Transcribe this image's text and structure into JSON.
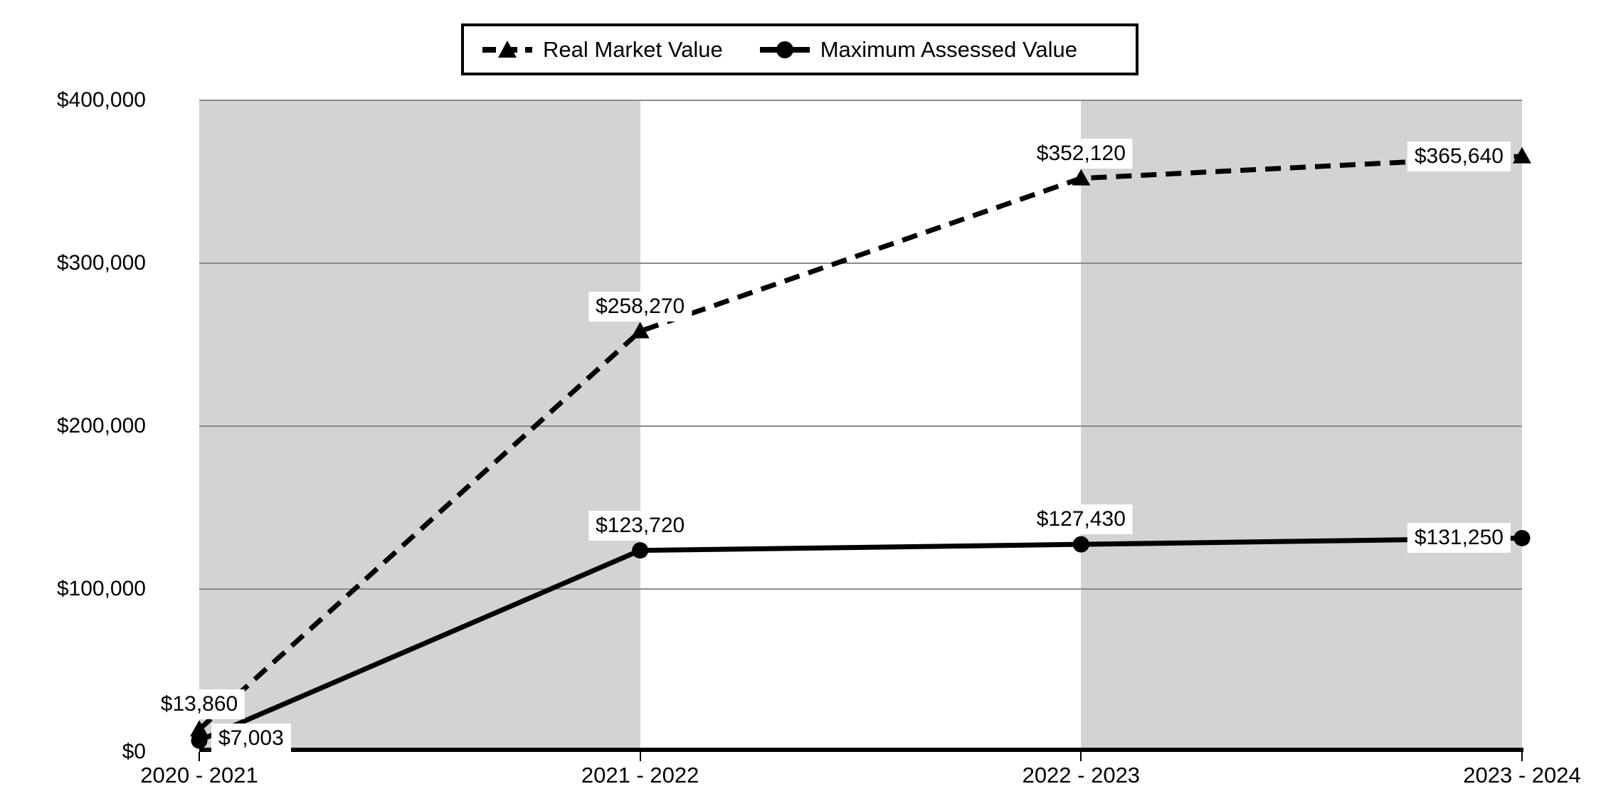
{
  "legend": {
    "items": [
      {
        "label": "Real Market Value",
        "marker": "triangle",
        "line": "dashed"
      },
      {
        "label": "Maximum Assessed Value",
        "marker": "circle",
        "line": "solid"
      }
    ]
  },
  "chart_data": {
    "type": "line",
    "title": "",
    "xlabel": "",
    "ylabel": "",
    "categories": [
      "2020 - 2021",
      "2021 - 2022",
      "2022 - 2023",
      "2023 - 2024"
    ],
    "series": [
      {
        "name": "Real Market Value",
        "values": [
          13860,
          258270,
          352120,
          365640
        ],
        "labels": [
          "$13,860",
          "$258,270",
          "$352,120",
          "$365,640"
        ],
        "label_pos": [
          "above",
          "above",
          "above",
          "left"
        ],
        "marker": "triangle",
        "line": "dashed"
      },
      {
        "name": "Maximum Assessed Value",
        "values": [
          7003,
          123720,
          127430,
          131250
        ],
        "labels": [
          "$7,003",
          "$123,720",
          "$127,430",
          "$131,250"
        ],
        "label_pos": [
          "right",
          "above",
          "above",
          "left"
        ],
        "marker": "circle",
        "line": "solid"
      }
    ],
    "y_axis": {
      "min": 0,
      "max": 400000,
      "ticks": [
        0,
        100000,
        200000,
        300000,
        400000
      ],
      "tick_labels": [
        "$0",
        "$100,000",
        "$200,000",
        "$300,000",
        "$400,000"
      ]
    },
    "x_axis": {
      "tick_labels": [
        "2020 - 2021",
        "2021 - 2022",
        "2022 - 2023",
        "2023 - 2024"
      ]
    },
    "grid": true,
    "legend_position": "top",
    "colors": {
      "series": "#000000",
      "gridline": "#8a8a8a",
      "band_gray": "#d3d3d3",
      "band_white": "#ffffff",
      "axis": "#000000",
      "label_background": "#ffffff"
    }
  }
}
